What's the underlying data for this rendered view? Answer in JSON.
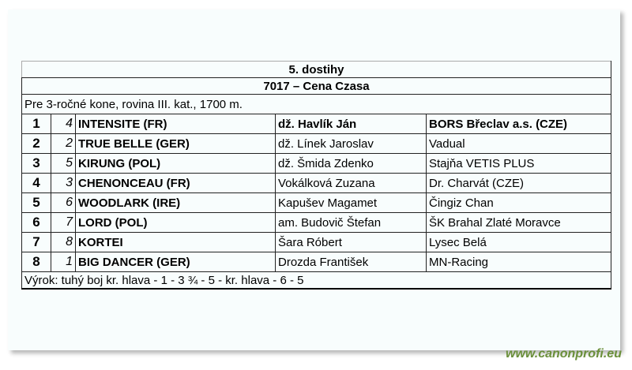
{
  "race": {
    "title": "5. dostihy",
    "name": "7017 – Cena Czasa",
    "conditions": "Pre 3-ročné kone, rovina III. kat., 1700 m.",
    "results": [
      {
        "place": "1",
        "number": "4",
        "horse": "INTENSITE (FR)",
        "jockey": "dž. Havlík Ján",
        "owner": "BORS Břeclav a.s. (CZE)"
      },
      {
        "place": "2",
        "number": "2",
        "horse": "TRUE BELLE (GER)",
        "jockey": "dž. Línek Jaroslav",
        "owner": "Vadual"
      },
      {
        "place": "3",
        "number": "5",
        "horse": "KIRUNG (POL)",
        "jockey": "dž. Šmida Zdenko",
        "owner": "Stajňa VETIS PLUS"
      },
      {
        "place": "4",
        "number": "3",
        "horse": "CHENONCEAU (FR)",
        "jockey": "Vokálková Zuzana",
        "owner": "Dr. Charvát (CZE)"
      },
      {
        "place": "5",
        "number": "6",
        "horse": "WOODLARK (IRE)",
        "jockey": "Kapušev Magamet",
        "owner": "Čingiz Chan"
      },
      {
        "place": "6",
        "number": "7",
        "horse": "LORD (POL)",
        "jockey": "am. Budovič Štefan",
        "owner": "ŠK Brahal Zlaté Moravce"
      },
      {
        "place": "7",
        "number": "8",
        "horse": "KORTEI",
        "jockey": "Šara Róbert",
        "owner": "Lysec Belá"
      },
      {
        "place": "8",
        "number": "1",
        "horse": "BIG DANCER (GER)",
        "jockey": "Drozda František",
        "owner": "MN-Racing"
      }
    ],
    "verdict": "Výrok: tuhý boj kr. hlava - 1 - 3 ¾ - 5 - kr. hlava - 6 - 5"
  },
  "watermark": "www.canonprofi.eu"
}
